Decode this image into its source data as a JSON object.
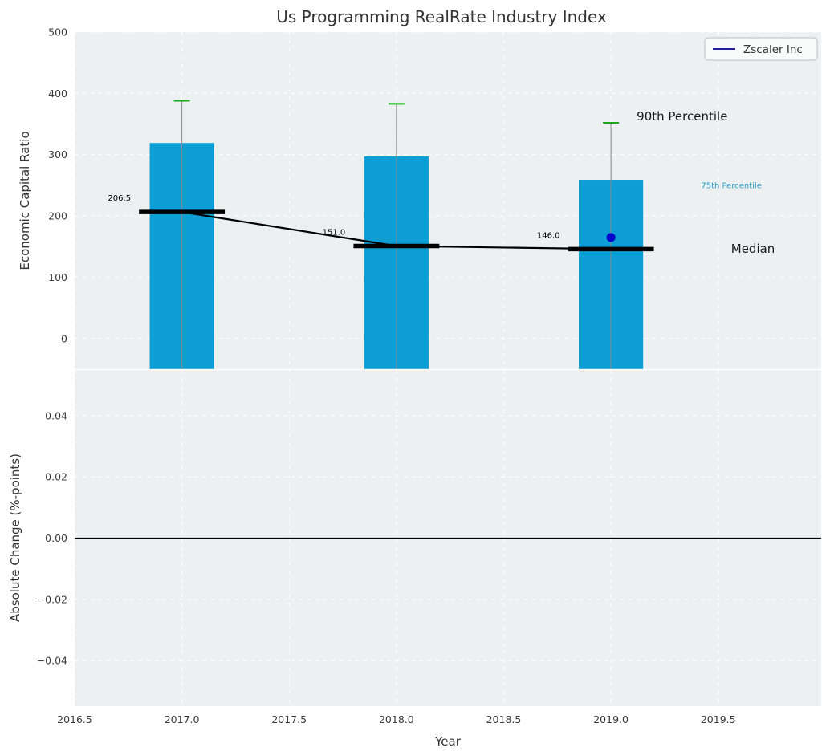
{
  "title": "Us Programming RealRate Industry Index",
  "legend": {
    "label": "Zscaler Inc"
  },
  "colors": {
    "axes_background": "#ecf0f1",
    "grid": "#ffffff",
    "bar": "#0d9ed6",
    "whisker": "#888888",
    "percentile90_cap": "#19a919",
    "median_line": "#000000",
    "company_marker": "#0000cc",
    "legend_line": "#00008b",
    "tick_text": "#3b3b3b",
    "text": "#333333"
  },
  "chart_data": [
    {
      "type": "bar",
      "title": "Us Programming RealRate Industry Index",
      "ylabel": "Economic Capital Ratio",
      "x": [
        2017,
        2018,
        2019
      ],
      "bar_width": 0.3,
      "xlim": [
        2016.5,
        2019.98
      ],
      "ylim": [
        -50,
        500
      ],
      "grid": true,
      "legend_position": "upper right",
      "yticks": [
        {
          "v": 0,
          "label": "0"
        },
        {
          "v": 100,
          "label": "100"
        },
        {
          "v": 200,
          "label": "200"
        },
        {
          "v": 300,
          "label": "300"
        },
        {
          "v": 400,
          "label": "400"
        },
        {
          "v": 500,
          "label": "500"
        }
      ],
      "series": [
        {
          "name": "75th Percentile",
          "type": "bar",
          "values": [
            319,
            297,
            259
          ]
        },
        {
          "name": "90th Percentile",
          "type": "cap",
          "values": [
            388,
            383,
            352
          ]
        },
        {
          "name": "Median",
          "type": "line",
          "values": [
            206.5,
            151.0,
            146.0
          ],
          "labels": [
            "206.5",
            "151.0",
            "146.0"
          ]
        },
        {
          "name": "Zscaler Inc",
          "type": "point",
          "values": [
            null,
            null,
            165
          ]
        }
      ],
      "annotations": [
        {
          "text": "90th Percentile",
          "x": 2019.12,
          "y": 356,
          "size": 15,
          "color": "#1a1a1a"
        },
        {
          "text": "75th Percentile",
          "x": 2019.42,
          "y": 245,
          "size": 10,
          "color": "#2b9fca"
        },
        {
          "text": "Median",
          "x": 2019.56,
          "y": 140,
          "size": 15,
          "color": "#1a1a1a"
        }
      ]
    },
    {
      "type": "bar",
      "ylabel": "Absolute Change (%-points)",
      "xlabel": "Year",
      "x": [
        2017,
        2018,
        2019
      ],
      "values": [
        0.0,
        0.0,
        0.0
      ],
      "xlim": [
        2016.5,
        2019.98
      ],
      "ylim": [
        -0.0549,
        0.0549
      ],
      "zero_line": true,
      "grid": true,
      "yticks": [
        {
          "v": 0.04,
          "label": "0.04"
        },
        {
          "v": 0.02,
          "label": "0.02"
        },
        {
          "v": 0.0,
          "label": "0.00"
        },
        {
          "v": -0.02,
          "label": "−0.02"
        },
        {
          "v": -0.04,
          "label": "−0.04"
        }
      ],
      "xticks": [
        {
          "v": 2016.5,
          "label": "2016.5"
        },
        {
          "v": 2017.0,
          "label": "2017.0"
        },
        {
          "v": 2017.5,
          "label": "2017.5"
        },
        {
          "v": 2018.0,
          "label": "2018.0"
        },
        {
          "v": 2018.5,
          "label": "2018.5"
        },
        {
          "v": 2019.0,
          "label": "2019.0"
        },
        {
          "v": 2019.5,
          "label": "2019.5"
        }
      ]
    }
  ]
}
